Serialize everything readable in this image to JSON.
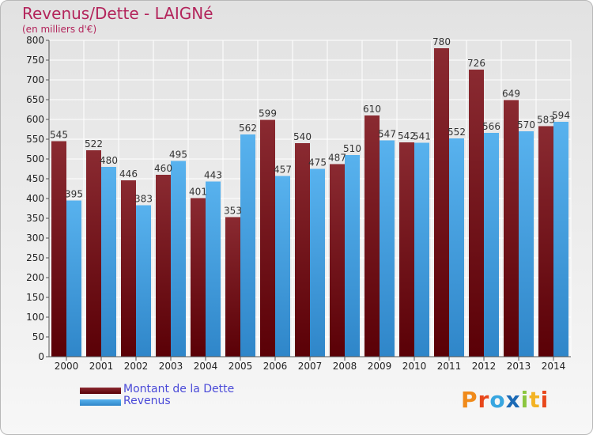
{
  "header": {
    "title": "Revenus/Dette - LAIGNé",
    "subtitle": "(en milliers d'€)"
  },
  "legend": {
    "items": [
      {
        "label": "Montant de la Dette",
        "color": "#6e0b14"
      },
      {
        "label": "Revenus",
        "color": "#3d9be0"
      }
    ]
  },
  "brand": {
    "letters": [
      "P",
      "r",
      "o",
      "x",
      "i",
      "t",
      "i"
    ],
    "colors": [
      "#f08a1a",
      "#e8471b",
      "#38a6e0",
      "#1c6ab5",
      "#8cc63f",
      "#f3b324",
      "#e8471b"
    ]
  },
  "chart_data": {
    "type": "bar",
    "categories": [
      "2000",
      "2001",
      "2002",
      "2003",
      "2004",
      "2005",
      "2006",
      "2007",
      "2008",
      "2009",
      "2010",
      "2011",
      "2012",
      "2013",
      "2014"
    ],
    "series": [
      {
        "name": "Montant de la Dette",
        "color": "#6e0b14",
        "values": [
          545,
          522,
          446,
          460,
          401,
          353,
          599,
          540,
          487,
          610,
          542,
          780,
          726,
          649,
          583
        ]
      },
      {
        "name": "Revenus",
        "color": "#3d9be0",
        "values": [
          395,
          480,
          383,
          495,
          443,
          562,
          457,
          475,
          510,
          547,
          541,
          552,
          566,
          570,
          594
        ]
      }
    ],
    "ylim": [
      0,
      800
    ],
    "yticks": [
      0,
      50,
      100,
      150,
      200,
      250,
      300,
      350,
      400,
      450,
      500,
      550,
      600,
      650,
      700,
      750,
      800
    ],
    "grid": true
  }
}
